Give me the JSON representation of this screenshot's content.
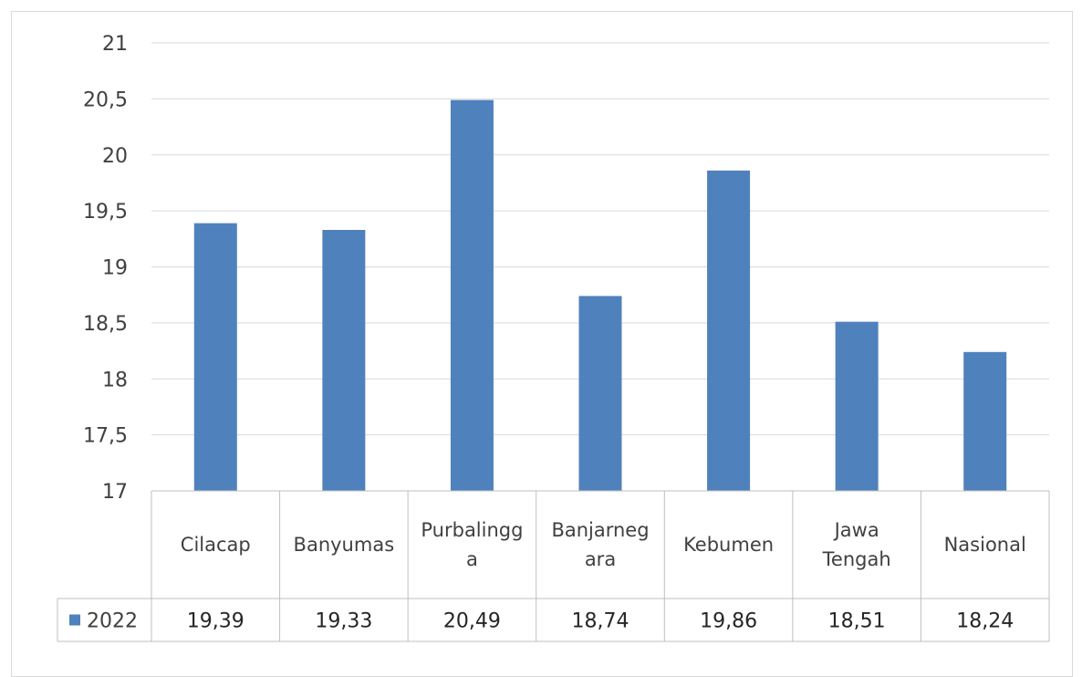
{
  "chart_data": {
    "type": "bar",
    "title": "",
    "xlabel": "",
    "ylabel": "",
    "ylim": [
      17,
      21
    ],
    "yticks": [
      "17",
      "17,5",
      "18",
      "18,5",
      "19",
      "19,5",
      "20",
      "20,5",
      "21"
    ],
    "categories": [
      "Cilacap",
      "Banyumas",
      "Purbalingga",
      "Banjarnegara",
      "Kebumen",
      "Jawa Tengah",
      "Nasional"
    ],
    "category_lines": [
      [
        "Cilacap"
      ],
      [
        "Banyumas"
      ],
      [
        "Purbalingg",
        "a"
      ],
      [
        "Banjarneg",
        "ara"
      ],
      [
        "Kebumen"
      ],
      [
        "Jawa",
        "Tengah"
      ],
      [
        "Nasional"
      ]
    ],
    "series": [
      {
        "name": "2022",
        "values": [
          19.39,
          19.33,
          20.49,
          18.74,
          19.86,
          18.51,
          18.24
        ],
        "labels": [
          "19,39",
          "19,33",
          "20,49",
          "18,74",
          "19,86",
          "18,51",
          "18,24"
        ],
        "color": "#4f81bd"
      }
    ],
    "grid": true,
    "legend": "data-table-left",
    "colors": {
      "gridline": "#d9d9d9",
      "table_border": "#bfbfbf",
      "bar": "#4f81bd"
    }
  }
}
